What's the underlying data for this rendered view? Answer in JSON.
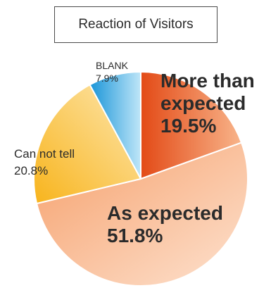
{
  "chart_data": {
    "type": "pie",
    "title": "Reaction of Visitors",
    "slices": [
      {
        "label": "More than expected",
        "value": 19.5,
        "value_text": "19.5%",
        "color_start": "#e34a16",
        "color_end": "#f8b48a"
      },
      {
        "label": "As expected",
        "value": 51.8,
        "value_text": "51.8%",
        "color_start": "#f6a06c",
        "color_end": "#fde2cf"
      },
      {
        "label": "Can not tell",
        "value": 20.8,
        "value_text": "20.8%",
        "color_start": "#f8b41c",
        "color_end": "#fde7b0"
      },
      {
        "label": "BLANK",
        "value": 7.9,
        "value_text": "7.9%",
        "color_start": "#1a95d8",
        "color_end": "#bfe6f8"
      }
    ],
    "start_angle_deg": 0,
    "direction": "clockwise",
    "legend": "none"
  },
  "labels": {
    "more_line1": "More than",
    "more_line2": "expected",
    "more_value": "19.5%",
    "as_line1": "As expected",
    "as_value": "51.8%",
    "cannot_line1": "Can not tell",
    "cannot_value": "20.8%",
    "blank_line1": "BLANK",
    "blank_value": "7.9%"
  }
}
